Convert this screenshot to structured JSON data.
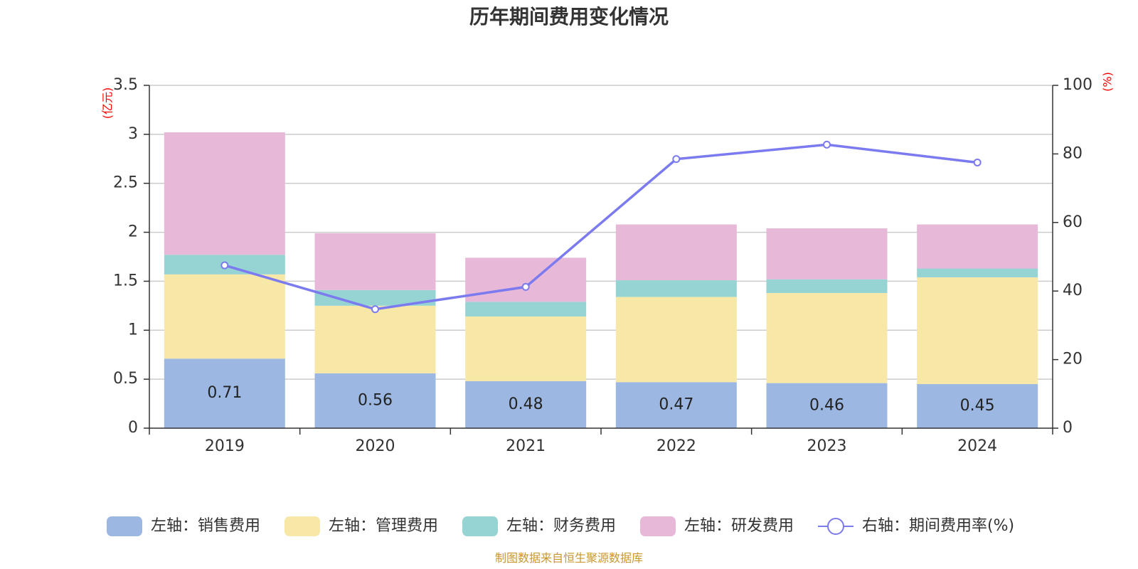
{
  "chart_data": {
    "type": "bar",
    "title": "历年期间费用变化情况",
    "categories": [
      "2019",
      "2020",
      "2021",
      "2022",
      "2023",
      "2024"
    ],
    "series": [
      {
        "name": "左轴：销售费用",
        "axis": "left",
        "type": "bar",
        "color": "#9cb8e2",
        "values": [
          0.71,
          0.56,
          0.48,
          0.47,
          0.46,
          0.45
        ]
      },
      {
        "name": "左轴：管理费用",
        "axis": "left",
        "type": "bar",
        "color": "#f7e8a8",
        "values": [
          0.86,
          0.69,
          0.66,
          0.87,
          0.92,
          1.09
        ]
      },
      {
        "name": "左轴：财务费用",
        "axis": "left",
        "type": "bar",
        "color": "#96d4d4",
        "values": [
          0.2,
          0.16,
          0.15,
          0.17,
          0.14,
          0.09
        ]
      },
      {
        "name": "左轴：研发费用",
        "axis": "left",
        "type": "bar",
        "color": "#e8b8d8",
        "values": [
          1.25,
          0.58,
          0.45,
          0.57,
          0.52,
          0.45
        ]
      },
      {
        "name": "右轴：期间费用率(%)",
        "axis": "right",
        "type": "line",
        "color": "#7b7bef",
        "values": [
          47.5,
          34.7,
          41.2,
          78.5,
          82.7,
          77.5
        ]
      }
    ],
    "data_labels": [
      "0.71",
      "0.56",
      "0.48",
      "0.47",
      "0.46",
      "0.45"
    ],
    "y_left": {
      "unit": "(亿元)",
      "min": 0,
      "max": 3.5,
      "ticks": [
        "0",
        "0.5",
        "1",
        "1.5",
        "2",
        "2.5",
        "3",
        "3.5"
      ]
    },
    "y_right": {
      "unit": "(%)",
      "min": 0,
      "max": 100,
      "ticks": [
        "0",
        "20",
        "40",
        "60",
        "80",
        "100"
      ]
    },
    "grid": true,
    "legend_position": "bottom"
  },
  "source": "制图数据来自恒生聚源数据库"
}
